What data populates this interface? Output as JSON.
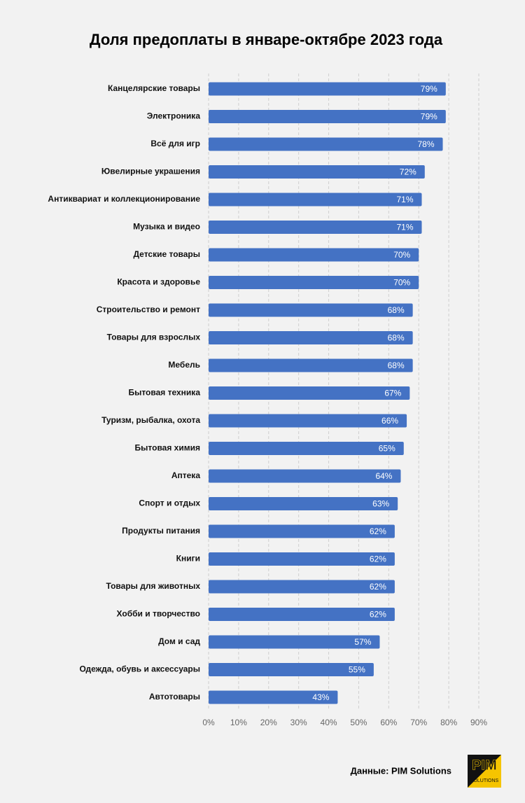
{
  "chart_data": {
    "type": "barh",
    "title": "Доля предоплаты в январе-октябре 2023 года",
    "categories": [
      "Канцелярские товары",
      "Электроника",
      "Всё для игр",
      "Ювелирные украшения",
      "Антиквариат и коллекционирование",
      "Музыка и видео",
      "Детские товары",
      "Красота и здоровье",
      "Строительство и ремонт",
      "Товары для взрослых",
      "Мебель",
      "Бытовая техника",
      "Туризм, рыбалка, охота",
      "Бытовая химия",
      "Аптека",
      "Спорт и отдых",
      "Продукты питания",
      "Книги",
      "Товары для животных",
      "Хобби и творчество",
      "Дом и сад",
      "Одежда, обувь и аксессуары",
      "Автотовары"
    ],
    "values": [
      79,
      79,
      78,
      72,
      71,
      71,
      70,
      70,
      68,
      68,
      68,
      67,
      66,
      65,
      64,
      63,
      62,
      62,
      62,
      62,
      57,
      55,
      43
    ],
    "value_labels": [
      "79%",
      "79%",
      "78%",
      "72%",
      "71%",
      "71%",
      "70%",
      "70%",
      "68%",
      "68%",
      "68%",
      "67%",
      "66%",
      "65%",
      "64%",
      "63%",
      "62%",
      "62%",
      "62%",
      "62%",
      "57%",
      "55%",
      "43%"
    ],
    "color": "#4472c4",
    "xlim": [
      0,
      90
    ],
    "xticks": [
      {
        "value": 0,
        "label": "0%"
      },
      {
        "value": 10,
        "label": "10%"
      },
      {
        "value": 20,
        "label": "20%"
      },
      {
        "value": 30,
        "label": "30%"
      },
      {
        "value": 40,
        "label": "40%"
      },
      {
        "value": 50,
        "label": "50%"
      },
      {
        "value": 60,
        "label": "60%"
      },
      {
        "value": 70,
        "label": "70%"
      },
      {
        "value": 80,
        "label": "80%"
      },
      {
        "value": 90,
        "label": "90%"
      }
    ],
    "grid": true,
    "source": "Данные: PIM Solutions",
    "logo": {
      "name": "PIM",
      "subtitle": "SOLUTIONS"
    }
  }
}
